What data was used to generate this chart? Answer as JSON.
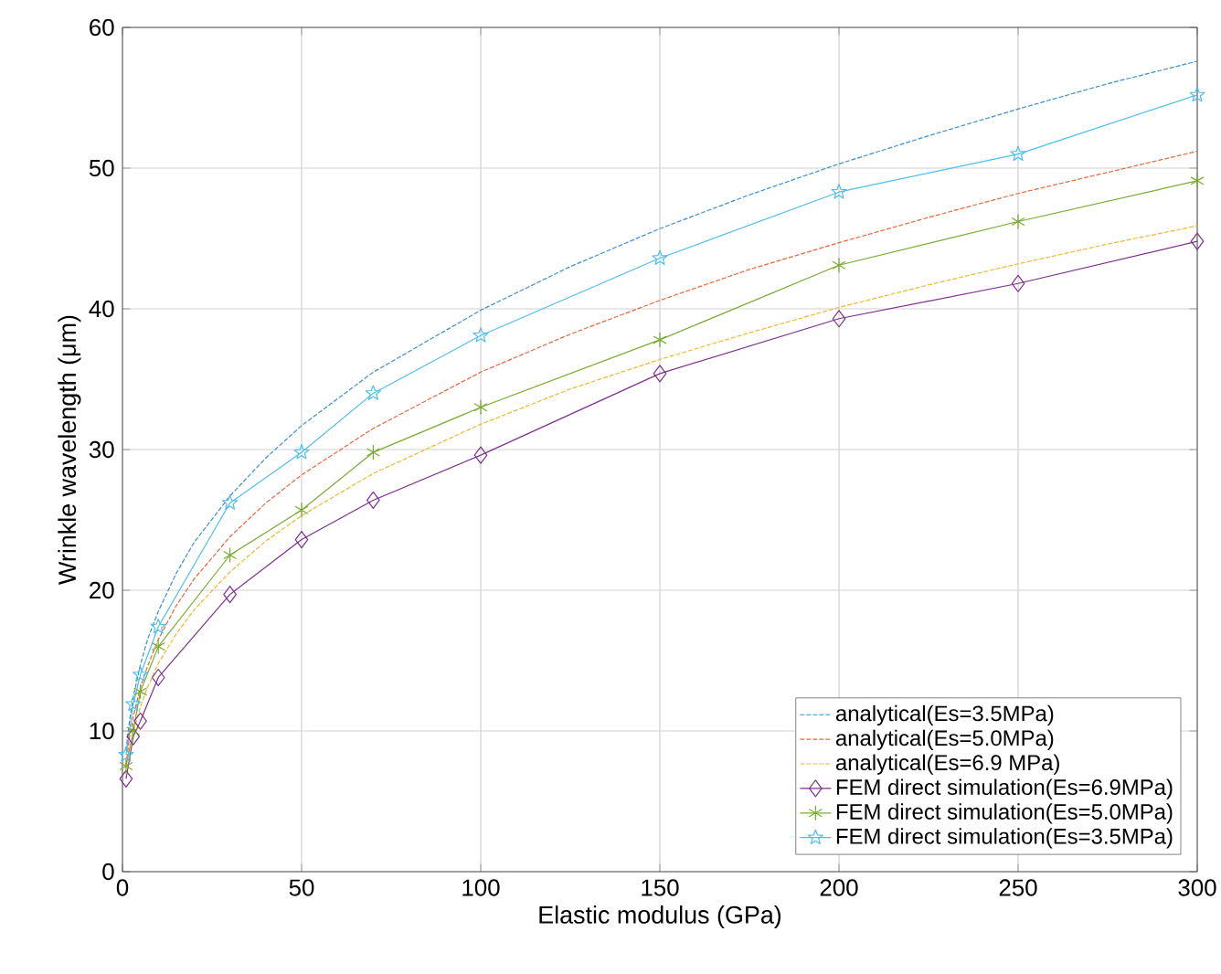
{
  "chart_data": {
    "type": "line",
    "xlabel": "Elastic modulus (GPa)",
    "ylabel": "Wrinkle wavelength (μm)",
    "xlim": [
      0,
      300
    ],
    "ylim": [
      0,
      60
    ],
    "xticks": [
      0,
      50,
      100,
      150,
      200,
      250,
      300
    ],
    "yticks": [
      0,
      10,
      20,
      30,
      40,
      50,
      60
    ],
    "grid": true,
    "legend": "bottom right",
    "series": [
      {
        "name": "analytical(Es=3.5MPa)",
        "color": "#3d8fd1",
        "line_style": "dashed",
        "marker": "none",
        "x": [
          1,
          2,
          3,
          5,
          7,
          10,
          15,
          20,
          30,
          40,
          50,
          70,
          100,
          125,
          150,
          175,
          200,
          225,
          250,
          275,
          300
        ],
        "values": [
          8.6,
          10.8,
          12.4,
          14.7,
          16.5,
          18.5,
          21.2,
          23.4,
          26.7,
          29.4,
          31.7,
          35.5,
          39.9,
          43.0,
          45.7,
          48.1,
          50.3,
          52.3,
          54.2,
          56.0,
          57.6
        ]
      },
      {
        "name": "analytical(Es=5.0MPa)",
        "color": "#e8673a",
        "line_style": "dashed",
        "marker": "none",
        "x": [
          1,
          2,
          3,
          5,
          7,
          10,
          15,
          20,
          30,
          40,
          50,
          70,
          100,
          125,
          150,
          175,
          200,
          225,
          250,
          275,
          300
        ],
        "values": [
          7.6,
          9.6,
          11.0,
          13.1,
          14.6,
          16.5,
          18.9,
          20.8,
          23.8,
          26.2,
          28.2,
          31.5,
          35.5,
          38.2,
          40.6,
          42.8,
          44.7,
          46.5,
          48.2,
          49.7,
          51.2
        ]
      },
      {
        "name": "analytical(Es=6.9 MPa)",
        "color": "#f0b72f",
        "line_style": "dashed",
        "marker": "none",
        "x": [
          1,
          2,
          3,
          5,
          7,
          10,
          15,
          20,
          30,
          40,
          50,
          70,
          100,
          125,
          150,
          175,
          200,
          225,
          250,
          275,
          300
        ],
        "values": [
          6.9,
          8.6,
          9.9,
          11.7,
          13.1,
          14.8,
          16.9,
          18.6,
          21.3,
          23.5,
          25.3,
          28.3,
          31.8,
          34.3,
          36.4,
          38.3,
          40.1,
          41.7,
          43.2,
          44.6,
          45.9
        ]
      },
      {
        "name": "FEM direct simulation(Es=6.9MPa)",
        "color": "#7e2f8e",
        "line_style": "solid",
        "marker": "diamond",
        "x": [
          1,
          3,
          5,
          10,
          30,
          50,
          70,
          100,
          150,
          200,
          250,
          300
        ],
        "values": [
          6.6,
          9.6,
          10.7,
          13.8,
          19.7,
          23.6,
          26.4,
          29.6,
          35.4,
          39.3,
          41.8,
          44.8
        ]
      },
      {
        "name": "FEM direct simulation(Es=5.0MPa)",
        "color": "#77ac30",
        "line_style": "solid",
        "marker": "cross",
        "x": [
          1,
          3,
          5,
          10,
          30,
          50,
          70,
          100,
          150,
          200,
          250,
          300
        ],
        "values": [
          7.5,
          10.0,
          12.8,
          16.0,
          22.5,
          25.7,
          29.8,
          33.0,
          37.8,
          43.1,
          46.2,
          49.1
        ]
      },
      {
        "name": "FEM direct simulation(Es=3.5MPa)",
        "color": "#4dbeee",
        "line_style": "solid",
        "marker": "star",
        "x": [
          1,
          3,
          5,
          10,
          30,
          50,
          70,
          100,
          150,
          200,
          250,
          300
        ],
        "values": [
          8.3,
          11.9,
          14.0,
          17.4,
          26.2,
          29.8,
          34.0,
          38.1,
          43.6,
          48.3,
          51.0,
          55.2
        ]
      }
    ]
  }
}
